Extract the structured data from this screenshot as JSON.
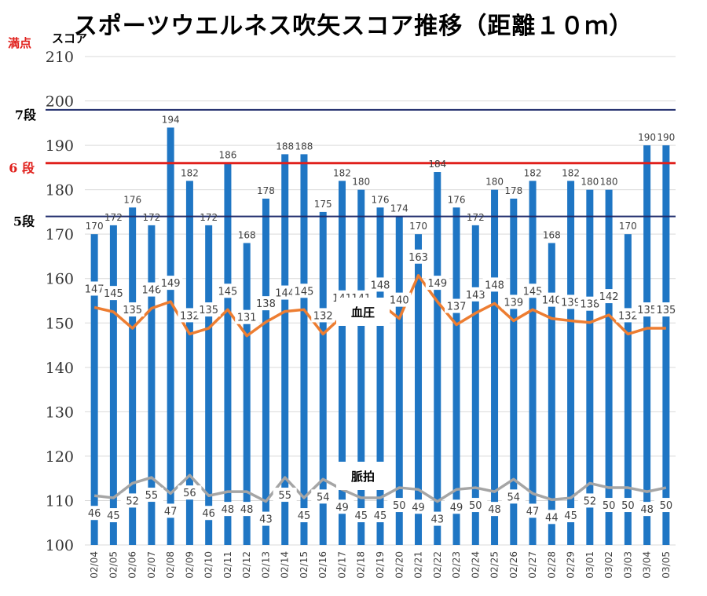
{
  "title": "スポーツウエルネス吹矢スコア推移（距離１０ｍ）",
  "perfect_label": "満点",
  "colors": {
    "bar": "#1f76c4",
    "blood_pressure": "#ed7d31",
    "pulse": "#a5a5a5",
    "grid": "#d9d9d9",
    "rank_7": "#1f2b6b",
    "rank_6": "#e0201c",
    "rank_5": "#1f2b6b"
  },
  "chart_data": {
    "type": "bar",
    "ylabel": "スコア",
    "ylim": [
      100,
      210
    ],
    "yticks": [
      100,
      110,
      120,
      130,
      140,
      150,
      160,
      170,
      180,
      190,
      200,
      210
    ],
    "grid": true,
    "categories": [
      "02/04",
      "02/05",
      "02/06",
      "02/07",
      "02/08",
      "02/09",
      "02/10",
      "02/11",
      "02/12",
      "02/13",
      "02/14",
      "02/15",
      "02/16",
      "02/17",
      "02/18",
      "02/19",
      "02/20",
      "02/21",
      "02/22",
      "02/23",
      "02/24",
      "02/25",
      "02/26",
      "02/27",
      "02/28",
      "02/29",
      "03/01",
      "03/02",
      "03/03",
      "03/04",
      "03/05"
    ],
    "series": [
      {
        "type": "bar",
        "values": [
          170,
          172,
          176,
          172,
          194,
          182,
          172,
          186,
          168,
          178,
          188,
          188,
          175,
          182,
          180,
          176,
          174,
          170,
          184,
          176,
          172,
          180,
          178,
          182,
          168,
          182,
          180,
          180,
          170,
          190,
          190
        ],
        "labels": [
          "170",
          "172",
          "176",
          "172",
          "194",
          "182",
          "172",
          "186",
          "168",
          "178",
          "188",
          "188",
          "175",
          "182",
          "180",
          "176",
          "174",
          "170",
          "184",
          "176",
          "172",
          "180",
          "178",
          "182",
          "168",
          "182",
          "180",
          "180",
          "170",
          "190",
          "190"
        ]
      },
      {
        "type": "line",
        "name": "血圧",
        "values": [
          147,
          145,
          135,
          146,
          149,
          132,
          135,
          145,
          131,
          138,
          144,
          145,
          132,
          141,
          141,
          148,
          140,
          163,
          149,
          137,
          143,
          148,
          139,
          145,
          140,
          139,
          138,
          142,
          132,
          135,
          135
        ],
        "labels": [
          "147",
          "145",
          "135",
          "146",
          "149",
          "132",
          "135",
          "145",
          "131",
          "138",
          "144",
          "145",
          "132",
          "141",
          "141",
          "148",
          "140",
          "163",
          "149",
          "137",
          "143",
          "148",
          "139",
          "145",
          "140",
          "139",
          "138",
          "142",
          "132",
          "135",
          "135"
        ]
      },
      {
        "type": "line",
        "name": "脈拍",
        "values": [
          46,
          45,
          52,
          55,
          47,
          56,
          46,
          48,
          48,
          43,
          55,
          45,
          54,
          49,
          45,
          45,
          50,
          49,
          43,
          49,
          50,
          48,
          54,
          47,
          44,
          45,
          52,
          50,
          50,
          48,
          50
        ],
        "labels": [
          "46",
          "45",
          "52",
          "55",
          "47",
          "56",
          "46",
          "48",
          "48",
          "43",
          "55",
          "45",
          "54",
          "49",
          "45",
          "45",
          "50",
          "49",
          "43",
          "49",
          "50",
          "48",
          "54",
          "47",
          "44",
          "45",
          "52",
          "50",
          "50",
          "48",
          "50"
        ]
      }
    ],
    "line_curves": {
      "血圧": [
        153.5,
        152.5,
        148.8,
        153.3,
        154.8,
        147.5,
        148.8,
        153.0,
        147.1,
        150.2,
        152.6,
        153.0,
        147.5,
        151.5,
        151.5,
        154.4,
        151.0,
        160.7,
        154.8,
        149.6,
        152.2,
        154.4,
        150.5,
        153.0,
        151.0,
        150.5,
        150.1,
        151.8,
        147.5,
        148.8,
        148.8
      ],
      "脈拍": [
        111.1,
        110.6,
        113.9,
        115.2,
        111.6,
        115.7,
        111.1,
        112.0,
        112.0,
        109.8,
        115.2,
        110.6,
        114.8,
        112.5,
        110.6,
        110.6,
        112.9,
        112.5,
        109.8,
        112.5,
        112.9,
        112.0,
        114.8,
        111.6,
        110.2,
        110.6,
        113.9,
        112.9,
        112.9,
        112.0,
        112.9
      ]
    },
    "reference_lines": [
      {
        "label": "7段",
        "value": 198
      },
      {
        "label": "6 段",
        "value": 186
      },
      {
        "label": "5段",
        "value": 174
      }
    ]
  }
}
